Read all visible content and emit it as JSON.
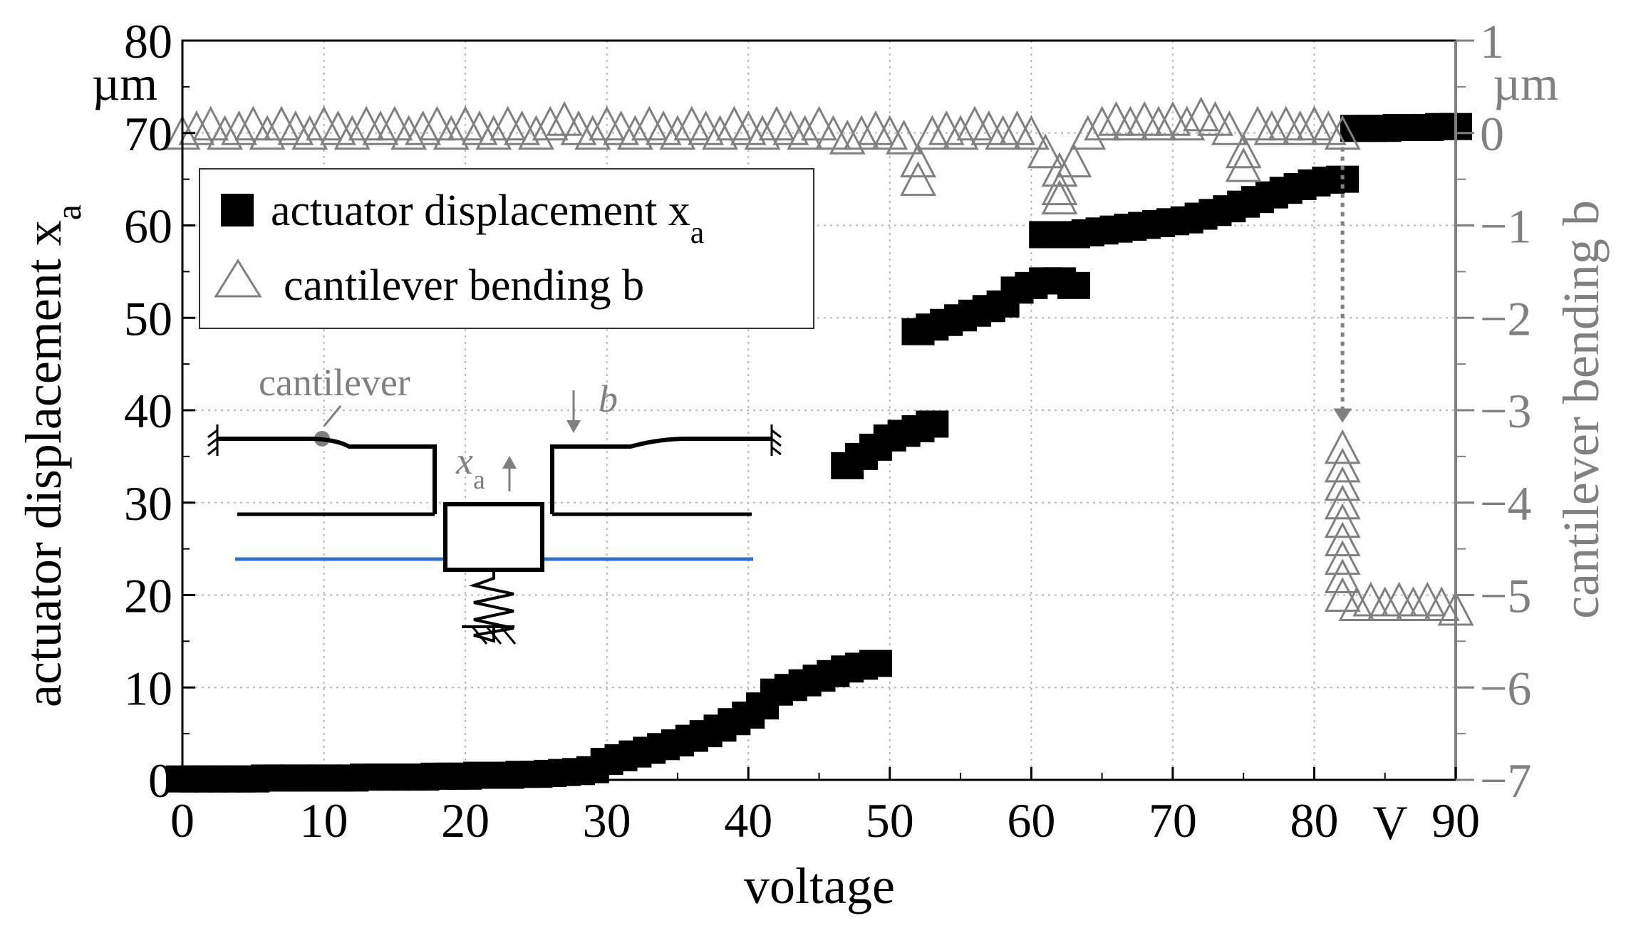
{
  "chart_data": {
    "type": "scatter",
    "xlabel": "voltage",
    "x_unit": "V",
    "ylabel_left": "actuator displacement x",
    "ylabel_left_sub": "a",
    "y_unit_left": "µm",
    "ylabel_right": "cantilever bending b",
    "y_unit_right": "µm",
    "xlim": [
      0,
      90
    ],
    "ylim_left": [
      0,
      80
    ],
    "ylim_right": [
      -7,
      1
    ],
    "x_ticks": [
      "0",
      "10",
      "20",
      "30",
      "40",
      "50",
      "60",
      "70",
      "80",
      "90"
    ],
    "y_ticks_left": [
      "0",
      "10",
      "20",
      "30",
      "40",
      "50",
      "60",
      "70",
      "80"
    ],
    "y_ticks_right": [
      "−7",
      "−6",
      "−5",
      "−4",
      "−3",
      "−2",
      "−1",
      "0",
      "1"
    ],
    "grid": true,
    "legend_position": "upper-left",
    "series": [
      {
        "name": "actuator displacement x",
        "name_sub": "a",
        "marker": "square",
        "color": "#000000",
        "points": [
          [
            0,
            0.1
          ],
          [
            1,
            0.1
          ],
          [
            2,
            0.1
          ],
          [
            3,
            0.1
          ],
          [
            4,
            0.1
          ],
          [
            5,
            0.1
          ],
          [
            6,
            0.2
          ],
          [
            7,
            0.2
          ],
          [
            8,
            0.2
          ],
          [
            9,
            0.2
          ],
          [
            10,
            0.2
          ],
          [
            11,
            0.2
          ],
          [
            12,
            0.2
          ],
          [
            13,
            0.3
          ],
          [
            14,
            0.3
          ],
          [
            15,
            0.3
          ],
          [
            16,
            0.3
          ],
          [
            17,
            0.3
          ],
          [
            18,
            0.4
          ],
          [
            19,
            0.4
          ],
          [
            20,
            0.4
          ],
          [
            21,
            0.5
          ],
          [
            22,
            0.5
          ],
          [
            23,
            0.5
          ],
          [
            24,
            0.6
          ],
          [
            25,
            0.6
          ],
          [
            26,
            0.7
          ],
          [
            27,
            0.8
          ],
          [
            28,
            0.9
          ],
          [
            29,
            1.1
          ],
          [
            30,
            2.0
          ],
          [
            31,
            2.4
          ],
          [
            32,
            2.8
          ],
          [
            33,
            3.2
          ],
          [
            34,
            3.6
          ],
          [
            35,
            4.0
          ],
          [
            36,
            4.5
          ],
          [
            37,
            5.0
          ],
          [
            38,
            5.6
          ],
          [
            39,
            6.3
          ],
          [
            40,
            7.0
          ],
          [
            41,
            8.0
          ],
          [
            42,
            9.5
          ],
          [
            43,
            10.0
          ],
          [
            44,
            10.5
          ],
          [
            45,
            11.0
          ],
          [
            46,
            11.5
          ],
          [
            47,
            12.0
          ],
          [
            48,
            12.3
          ],
          [
            49,
            12.6
          ],
          [
            47,
            34.0
          ],
          [
            48,
            35.0
          ],
          [
            49,
            36.0
          ],
          [
            50,
            37.0
          ],
          [
            51,
            37.5
          ],
          [
            52,
            38.0
          ],
          [
            53,
            38.5
          ],
          [
            52,
            48.5
          ],
          [
            53,
            49.0
          ],
          [
            54,
            49.5
          ],
          [
            55,
            50.0
          ],
          [
            56,
            50.5
          ],
          [
            57,
            51.0
          ],
          [
            58,
            51.5
          ],
          [
            59,
            53.0
          ],
          [
            60,
            53.5
          ],
          [
            61,
            54.0
          ],
          [
            62,
            54.0
          ],
          [
            63,
            53.5
          ],
          [
            61,
            59.0
          ],
          [
            62,
            59.0
          ],
          [
            63,
            59.0
          ],
          [
            64,
            59.2
          ],
          [
            65,
            59.4
          ],
          [
            66,
            59.6
          ],
          [
            67,
            59.8
          ],
          [
            68,
            60.0
          ],
          [
            69,
            60.2
          ],
          [
            70,
            60.4
          ],
          [
            71,
            60.6
          ],
          [
            72,
            61.0
          ],
          [
            73,
            61.4
          ],
          [
            74,
            61.8
          ],
          [
            75,
            62.3
          ],
          [
            76,
            62.8
          ],
          [
            77,
            63.3
          ],
          [
            78,
            63.8
          ],
          [
            79,
            64.2
          ],
          [
            80,
            64.6
          ],
          [
            81,
            64.9
          ],
          [
            82,
            65.0
          ],
          [
            83,
            70.5
          ],
          [
            84,
            70.5
          ],
          [
            85,
            70.5
          ],
          [
            86,
            70.6
          ],
          [
            87,
            70.6
          ],
          [
            88,
            70.6
          ],
          [
            89,
            70.7
          ],
          [
            90,
            70.7
          ]
        ]
      },
      {
        "name": "cantilever bending b",
        "marker": "triangle-open",
        "color": "#808080",
        "points": [
          [
            0,
            0.0
          ],
          [
            1,
            0.05
          ],
          [
            2,
            0.1
          ],
          [
            3,
            0.0
          ],
          [
            4,
            0.05
          ],
          [
            5,
            0.1
          ],
          [
            6,
            0.0
          ],
          [
            7,
            0.1
          ],
          [
            8,
            0.05
          ],
          [
            9,
            0.0
          ],
          [
            10,
            0.1
          ],
          [
            11,
            0.05
          ],
          [
            12,
            0.0
          ],
          [
            13,
            0.1
          ],
          [
            14,
            0.05
          ],
          [
            15,
            0.1
          ],
          [
            16,
            0.0
          ],
          [
            17,
            0.05
          ],
          [
            18,
            0.1
          ],
          [
            19,
            0.0
          ],
          [
            20,
            0.1
          ],
          [
            21,
            0.05
          ],
          [
            22,
            0.0
          ],
          [
            23,
            0.1
          ],
          [
            24,
            0.05
          ],
          [
            25,
            0.0
          ],
          [
            26,
            0.1
          ],
          [
            27,
            0.15
          ],
          [
            28,
            0.05
          ],
          [
            29,
            0.0
          ],
          [
            30,
            0.1
          ],
          [
            31,
            0.05
          ],
          [
            32,
            0.0
          ],
          [
            33,
            0.1
          ],
          [
            34,
            0.05
          ],
          [
            35,
            0.0
          ],
          [
            36,
            0.1
          ],
          [
            37,
            0.05
          ],
          [
            38,
            0.0
          ],
          [
            39,
            0.1
          ],
          [
            40,
            0.05
          ],
          [
            41,
            0.0
          ],
          [
            42,
            0.1
          ],
          [
            43,
            0.05
          ],
          [
            44,
            0.0
          ],
          [
            45,
            0.1
          ],
          [
            46,
            0.0
          ],
          [
            47,
            -0.05
          ],
          [
            48,
            0.0
          ],
          [
            49,
            0.05
          ],
          [
            50,
            0.0
          ],
          [
            51,
            -0.05
          ],
          [
            52,
            -0.3
          ],
          [
            52,
            -0.5
          ],
          [
            53,
            0.0
          ],
          [
            54,
            0.05
          ],
          [
            55,
            0.0
          ],
          [
            56,
            0.1
          ],
          [
            57,
            0.05
          ],
          [
            58,
            0.0
          ],
          [
            59,
            0.05
          ],
          [
            60,
            0.0
          ],
          [
            61,
            -0.2
          ],
          [
            62,
            -0.4
          ],
          [
            62,
            -0.6
          ],
          [
            62,
            -0.7
          ],
          [
            63,
            -0.3
          ],
          [
            64,
            0.0
          ],
          [
            65,
            0.1
          ],
          [
            66,
            0.15
          ],
          [
            67,
            0.1
          ],
          [
            68,
            0.15
          ],
          [
            69,
            0.1
          ],
          [
            70,
            0.15
          ],
          [
            71,
            0.1
          ],
          [
            72,
            0.2
          ],
          [
            73,
            0.15
          ],
          [
            74,
            0.05
          ],
          [
            75,
            -0.2
          ],
          [
            75,
            -0.35
          ],
          [
            76,
            0.1
          ],
          [
            77,
            0.05
          ],
          [
            78,
            0.1
          ],
          [
            79,
            0.05
          ],
          [
            80,
            0.1
          ],
          [
            81,
            0.05
          ],
          [
            82,
            0.0
          ],
          [
            82,
            -3.4
          ],
          [
            82,
            -3.6
          ],
          [
            82,
            -3.8
          ],
          [
            82,
            -4.0
          ],
          [
            82,
            -4.2
          ],
          [
            82,
            -4.4
          ],
          [
            82,
            -4.6
          ],
          [
            82,
            -4.8
          ],
          [
            82,
            -5.0
          ],
          [
            83,
            -5.1
          ],
          [
            84,
            -5.05
          ],
          [
            85,
            -5.1
          ],
          [
            86,
            -5.05
          ],
          [
            87,
            -5.1
          ],
          [
            88,
            -5.05
          ],
          [
            89,
            -5.1
          ],
          [
            90,
            -5.15
          ]
        ]
      }
    ],
    "annotation": {
      "type": "dotted-arrow",
      "color": "#808080",
      "from": [
        82,
        0.0
      ],
      "to": [
        82,
        -3.15
      ]
    }
  },
  "inset": {
    "cantilever_label": "cantilever",
    "displacement_label": "x",
    "displacement_sub": "a",
    "bending_label": "b",
    "colors": {
      "line": "#000000",
      "gray": "#808080",
      "blue": "#2f6fcf"
    }
  }
}
